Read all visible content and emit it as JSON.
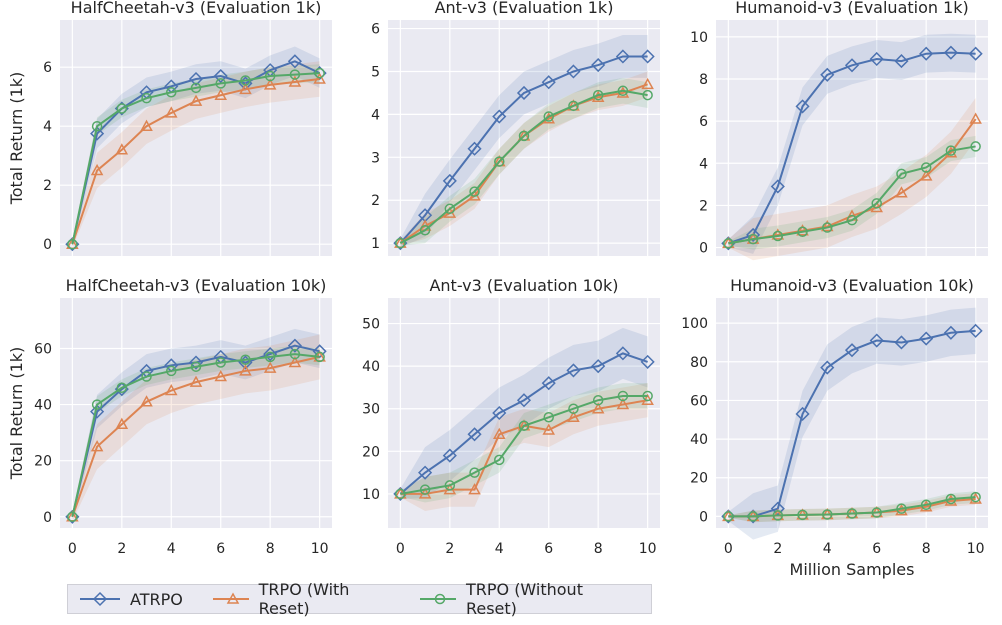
{
  "legend": {
    "items": [
      {
        "label": "ATRPO",
        "color": "#4c72b0",
        "marker": "diamond"
      },
      {
        "label": "TRPO (With Reset)",
        "color": "#dd8452",
        "marker": "triangle"
      },
      {
        "label": "TRPO (Without Reset)",
        "color": "#55a868",
        "marker": "circle"
      }
    ]
  },
  "chart_data": [
    {
      "type": "line",
      "title": "HalfCheetah-v3 (Evaluation 1k)",
      "ylabel": "Total Return (1k)",
      "xlabel": "",
      "x": [
        0,
        1,
        2,
        3,
        4,
        5,
        6,
        7,
        8,
        9,
        10
      ],
      "xticks": [
        0,
        2,
        4,
        6,
        8,
        10
      ],
      "yticks": [
        0,
        2,
        4,
        6
      ],
      "xlim": [
        -0.5,
        10.5
      ],
      "ylim": [
        -0.4,
        7.6
      ],
      "show_xticks": false,
      "series": [
        {
          "name": "ATRPO",
          "values": [
            0,
            3.75,
            4.6,
            5.15,
            5.35,
            5.6,
            5.7,
            5.45,
            5.9,
            6.2,
            5.8
          ],
          "band": 0.5
        },
        {
          "name": "TRPO (With Reset)",
          "values": [
            0,
            2.5,
            3.2,
            4.0,
            4.45,
            4.85,
            5.05,
            5.25,
            5.4,
            5.5,
            5.6
          ],
          "band": 0.6
        },
        {
          "name": "TRPO (Without Reset)",
          "values": [
            0,
            4.0,
            4.6,
            4.95,
            5.15,
            5.3,
            5.45,
            5.55,
            5.7,
            5.75,
            5.8
          ],
          "band": 0.3
        }
      ]
    },
    {
      "type": "line",
      "title": "Ant-v3 (Evaluation 1k)",
      "ylabel": "",
      "xlabel": "",
      "x": [
        0,
        1,
        2,
        3,
        4,
        5,
        6,
        7,
        8,
        9,
        10
      ],
      "xticks": [
        0,
        2,
        4,
        6,
        8,
        10
      ],
      "yticks": [
        1,
        2,
        3,
        4,
        5,
        6
      ],
      "xlim": [
        -0.5,
        10.5
      ],
      "ylim": [
        0.7,
        6.2
      ],
      "show_xticks": false,
      "series": [
        {
          "name": "ATRPO",
          "values": [
            1,
            1.65,
            2.45,
            3.2,
            3.95,
            4.5,
            4.75,
            5.0,
            5.15,
            5.35,
            5.35
          ],
          "band": 0.5
        },
        {
          "name": "TRPO (With Reset)",
          "values": [
            1,
            1.4,
            1.7,
            2.1,
            2.9,
            3.5,
            3.9,
            4.2,
            4.4,
            4.5,
            4.7
          ],
          "band": 0.3
        },
        {
          "name": "TRPO (Without Reset)",
          "values": [
            1,
            1.3,
            1.8,
            2.2,
            2.9,
            3.5,
            3.95,
            4.2,
            4.45,
            4.55,
            4.45
          ],
          "band": 0.3
        }
      ]
    },
    {
      "type": "line",
      "title": "Humanoid-v3 (Evaluation 1k)",
      "ylabel": "",
      "xlabel": "",
      "x": [
        0,
        1,
        2,
        3,
        4,
        5,
        6,
        7,
        8,
        9,
        10
      ],
      "xticks": [
        0,
        2,
        4,
        6,
        8,
        10
      ],
      "yticks": [
        0,
        2,
        4,
        6,
        8,
        10
      ],
      "xlim": [
        -0.5,
        10.5
      ],
      "ylim": [
        -0.4,
        10.8
      ],
      "show_xticks": false,
      "series": [
        {
          "name": "ATRPO",
          "values": [
            0.2,
            0.6,
            2.9,
            6.7,
            8.2,
            8.65,
            8.95,
            8.85,
            9.2,
            9.25,
            9.2
          ],
          "band": 0.9
        },
        {
          "name": "TRPO (With Reset)",
          "values": [
            0.2,
            0.4,
            0.6,
            0.8,
            1.0,
            1.5,
            1.9,
            2.6,
            3.4,
            4.5,
            6.1
          ],
          "band": 1.0
        },
        {
          "name": "TRPO (Without Reset)",
          "values": [
            0.2,
            0.4,
            0.55,
            0.75,
            0.95,
            1.3,
            2.1,
            3.5,
            3.8,
            4.6,
            4.8
          ],
          "band": 0.5
        }
      ]
    },
    {
      "type": "line",
      "title": "HalfCheetah-v3 (Evaluation 10k)",
      "ylabel": "Total Return (1k)",
      "xlabel": "",
      "x": [
        0,
        1,
        2,
        3,
        4,
        5,
        6,
        7,
        8,
        9,
        10
      ],
      "xticks": [
        0,
        2,
        4,
        6,
        8,
        10
      ],
      "yticks": [
        0,
        20,
        40,
        60
      ],
      "xlim": [
        -0.5,
        10.5
      ],
      "ylim": [
        -4,
        78
      ],
      "show_xticks": true,
      "series": [
        {
          "name": "ATRPO",
          "values": [
            0,
            37.5,
            45.5,
            52,
            54,
            55,
            57,
            55,
            58,
            61,
            59
          ],
          "band": 6
        },
        {
          "name": "TRPO (With Reset)",
          "values": [
            0,
            25,
            33,
            41,
            45,
            48,
            50,
            52,
            53,
            55,
            57
          ],
          "band": 8
        },
        {
          "name": "TRPO (Without Reset)",
          "values": [
            0,
            40,
            46,
            50,
            52,
            53.5,
            55,
            56,
            57,
            58,
            57
          ],
          "band": 3
        }
      ]
    },
    {
      "type": "line",
      "title": "Ant-v3 (Evaluation 10k)",
      "ylabel": "",
      "xlabel": "",
      "x": [
        0,
        1,
        2,
        3,
        4,
        5,
        6,
        7,
        8,
        9,
        10
      ],
      "xticks": [
        0,
        2,
        4,
        6,
        8,
        10
      ],
      "yticks": [
        10,
        20,
        30,
        40,
        50
      ],
      "xlim": [
        -0.5,
        10.5
      ],
      "ylim": [
        2,
        56
      ],
      "show_xticks": true,
      "series": [
        {
          "name": "ATRPO",
          "values": [
            10,
            15,
            19,
            24,
            29,
            32,
            36,
            39,
            40,
            43,
            41
          ],
          "band": 6
        },
        {
          "name": "TRPO (With Reset)",
          "values": [
            10,
            10,
            11,
            11,
            24,
            26,
            25,
            28,
            30,
            31,
            32
          ],
          "band": 4
        },
        {
          "name": "TRPO (Without Reset)",
          "values": [
            10,
            11,
            12,
            15,
            18,
            26,
            28,
            30,
            32,
            33,
            33
          ],
          "band": 3
        }
      ]
    },
    {
      "type": "line",
      "title": "Humanoid-v3 (Evaluation 10k)",
      "ylabel": "",
      "xlabel": "Million Samples",
      "x": [
        0,
        1,
        2,
        3,
        4,
        5,
        6,
        7,
        8,
        9,
        10
      ],
      "xticks": [
        0,
        2,
        4,
        6,
        8,
        10
      ],
      "yticks": [
        0,
        20,
        40,
        60,
        80,
        100
      ],
      "xlim": [
        -0.5,
        10.5
      ],
      "ylim": [
        -6,
        113
      ],
      "show_xticks": true,
      "series": [
        {
          "name": "ATRPO",
          "values": [
            0,
            0,
            4,
            53,
            77,
            86,
            91,
            90,
            92,
            95,
            96
          ],
          "band": 12
        },
        {
          "name": "TRPO (With Reset)",
          "values": [
            0,
            0,
            0.5,
            0.8,
            1,
            1.5,
            2,
            3,
            5,
            8,
            9
          ],
          "band": 3
        },
        {
          "name": "TRPO (Without Reset)",
          "values": [
            0,
            0,
            0.5,
            0.8,
            1,
            1.5,
            2,
            4,
            6,
            9,
            10
          ],
          "band": 3
        }
      ]
    }
  ]
}
